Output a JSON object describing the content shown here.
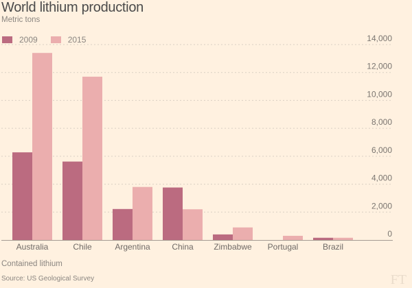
{
  "header": {
    "title": "World lithium production",
    "subtitle": "Metric tons"
  },
  "footer": {
    "note": "Contained lithium",
    "source": "Source: US Geological Survey",
    "logo": "FT"
  },
  "colors": {
    "background": "#fff1e0",
    "series_2009": "#bb6b80",
    "series_2015": "#ebaeae",
    "gridline": "#d9cfc3",
    "axis": "#a39b92"
  },
  "chart_data": {
    "type": "bar",
    "title": "World lithium production",
    "subtitle": "Metric tons",
    "xlabel": "",
    "ylabel": "Metric tons",
    "categories": [
      "Australia",
      "Chile",
      "Argentina",
      "China",
      "Zimbabwe",
      "Portugal",
      "Brazil"
    ],
    "series": [
      {
        "name": "2009",
        "color": "#bb6b80",
        "values": [
          6280,
          5620,
          2220,
          3760,
          400,
          0,
          160
        ]
      },
      {
        "name": "2015",
        "color": "#ebaeae",
        "values": [
          13400,
          11700,
          3800,
          2200,
          900,
          300,
          160
        ]
      }
    ],
    "ylim": [
      0,
      14000
    ],
    "yticks": [
      0,
      2000,
      4000,
      6000,
      8000,
      10000,
      12000,
      14000
    ],
    "ytick_labels": [
      "0",
      "2,000",
      "4,000",
      "6,000",
      "8,000",
      "10,000",
      "12,000",
      "14,000"
    ],
    "y_axis_side": "right",
    "grid": true,
    "legend": {
      "position": "top-left",
      "entries": [
        "2009",
        "2015"
      ]
    },
    "annotations": [
      "Contained lithium"
    ],
    "source": "Source: US Geological Survey"
  }
}
